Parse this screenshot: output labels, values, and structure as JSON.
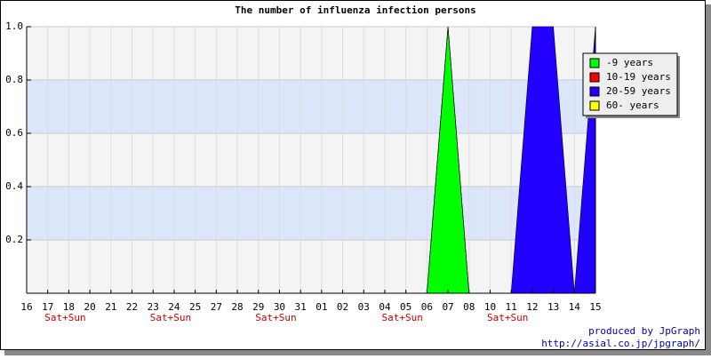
{
  "chart_data": {
    "type": "area",
    "stacked": true,
    "title": "The number of influenza infection persons",
    "categories": [
      "16",
      "17",
      "18",
      "20",
      "21",
      "22",
      "23",
      "24",
      "25",
      "27",
      "28",
      "29",
      "30",
      "31",
      "01",
      "02",
      "03",
      "04",
      "05",
      "06",
      "07",
      "08",
      "10",
      "11",
      "12",
      "13",
      "14",
      "15"
    ],
    "series": [
      {
        "name": "-9 years",
        "color": "#00ff00",
        "values": [
          0,
          0,
          0,
          0,
          0,
          0,
          0,
          0,
          0,
          0,
          0,
          0,
          0,
          0,
          0,
          0,
          0,
          0,
          0,
          0,
          1,
          0,
          0,
          0,
          0,
          0,
          0,
          0
        ]
      },
      {
        "name": "10-19 years",
        "color": "#ff0000",
        "values": [
          0,
          0,
          0,
          0,
          0,
          0,
          0,
          0,
          0,
          0,
          0,
          0,
          0,
          0,
          0,
          0,
          0,
          0,
          0,
          0,
          0,
          0,
          0,
          0,
          0,
          0,
          0,
          0
        ]
      },
      {
        "name": "20-59 years",
        "color": "#2200ff",
        "values": [
          0,
          0,
          0,
          0,
          0,
          0,
          0,
          0,
          0,
          0,
          0,
          0,
          0,
          0,
          0,
          0,
          0,
          0,
          0,
          0,
          0,
          0,
          0,
          0,
          1,
          1,
          0,
          1
        ]
      },
      {
        "name": "60- years",
        "color": "#ffff00",
        "values": [
          0,
          0,
          0,
          0,
          0,
          0,
          0,
          0,
          0,
          0,
          0,
          0,
          0,
          0,
          0,
          0,
          0,
          0,
          0,
          0,
          0,
          0,
          0,
          0,
          0,
          0,
          0,
          0
        ]
      }
    ],
    "ylim": [
      0,
      1
    ],
    "yticks": [
      0.2,
      0.4,
      0.6,
      0.8,
      {
        "value": 1,
        "label": "1.0"
      }
    ],
    "grid": true,
    "legend": "top-right",
    "annotations": [
      {
        "text": "Sat+Sun",
        "category": "18"
      },
      {
        "text": "Sat+Sun",
        "category": "24"
      },
      {
        "text": "Sat+Sun",
        "category": "30"
      },
      {
        "text": "Sat+Sun",
        "category": "05"
      },
      {
        "text": "Sat+Sun",
        "category": "11"
      }
    ],
    "credits": [
      "produced by JpGraph",
      "http://asial.co.jp/jpgraph/"
    ]
  }
}
